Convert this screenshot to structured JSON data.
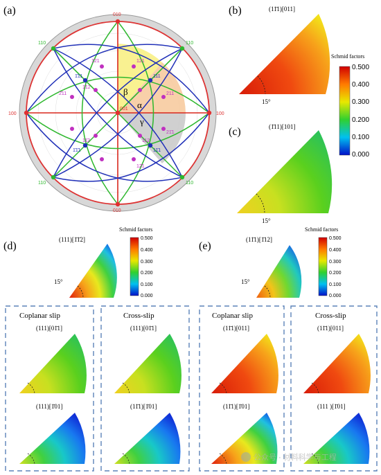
{
  "panels": {
    "a": {
      "label": "(a)",
      "angles": {
        "alpha": "α",
        "beta": "β",
        "gamma": "γ"
      },
      "poles": {
        "n001": "001",
        "n100_l": "100",
        "n100_r": "100",
        "n010_t": "010",
        "n010_b": "010",
        "n111": "111",
        "n111b": "1̄11",
        "n11b1": "11̄1",
        "n1b1b1": "1̄1̄1",
        "n211": "211",
        "n121": "121",
        "n112": "112",
        "n2b11": "2̄11",
        "n1b21": "1̄21",
        "n112b": "1̄12",
        "n11b2": "11̄2",
        "n21b1": "21̄1",
        "n12b1": "12̄1",
        "n110_tl": "110",
        "n110_tr": "110",
        "n110_bl": "110",
        "n110_br": "110"
      }
    },
    "b": {
      "label": "(b)",
      "title": "(11̄1)[011]",
      "angle": "15°"
    },
    "c": {
      "label": "(c)",
      "title": "(1̄11)[101]",
      "angle": "15°"
    },
    "d": {
      "label": "(d)",
      "title": "(111)[1̄1̄2]",
      "angle": "15°",
      "coplanar": {
        "heading": "Coplanar slip",
        "top": "(111)[01̄1]",
        "bottom": "(111)[1̄01]"
      },
      "cross": {
        "heading": "Cross-slip",
        "top": "(111)[01̄1]",
        "bottom": "(11̄1)[1̄01]"
      }
    },
    "e": {
      "label": "(e)",
      "title": "(11̄1)[1̄12]",
      "angle": "15°",
      "coplanar": {
        "heading": "Coplanar slip",
        "top": "(11̄1)[011]",
        "bottom": "(11̄1)[1̄01]"
      },
      "cross": {
        "heading": "Cross-slip",
        "top": "(11̄1)[011]",
        "bottom": "(111 )[1̄01]"
      }
    }
  },
  "colorbar": {
    "title": "Schmid factors",
    "ticks": [
      "0.500",
      "0.400",
      "0.300",
      "0.200",
      "0.100",
      "0.000"
    ]
  },
  "watermark": "公众号 · 材料科学与工程"
}
